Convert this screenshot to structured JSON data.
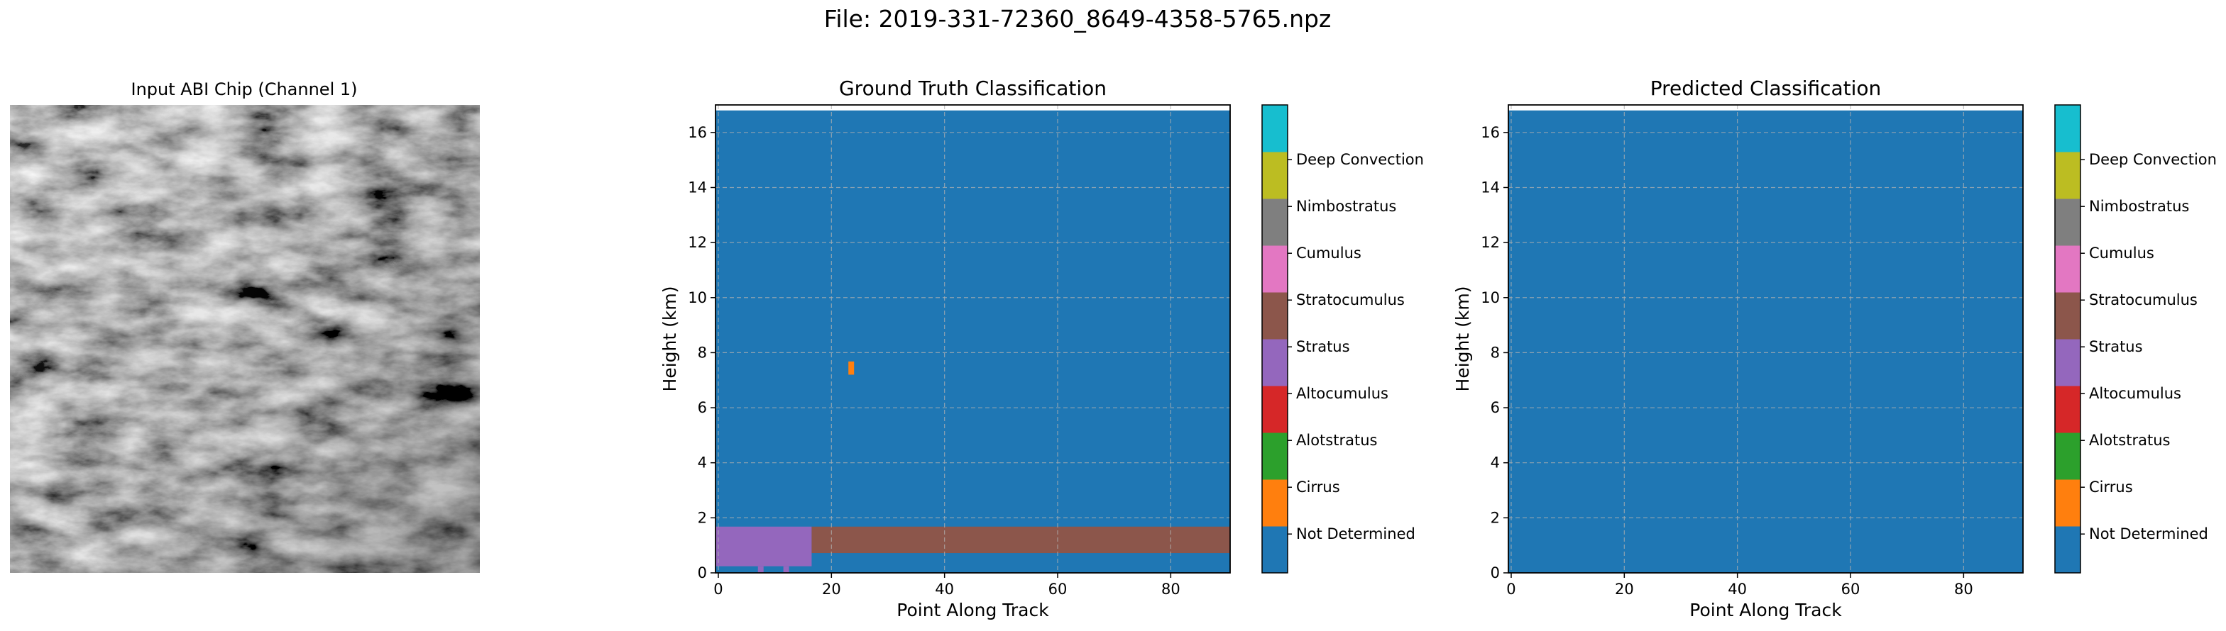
{
  "figure": {
    "suptitle": "File: 2019-331-72360_8649-4358-5765.npz"
  },
  "image_panel": {
    "title": "Input ABI Chip (Channel 1)"
  },
  "chart_data": [
    {
      "type": "heatmap",
      "title": "Ground Truth Classification",
      "xlabel": "Point Along Track",
      "ylabel": "Height (km)",
      "xlim": [
        -0.5,
        90.5
      ],
      "ylim": [
        0,
        17
      ],
      "data_top": 16.8,
      "xticks": [
        0,
        20,
        40,
        60,
        80
      ],
      "yticks": [
        0,
        2,
        4,
        6,
        8,
        10,
        12,
        14,
        16
      ],
      "grid": true,
      "background_class": "Not Determined",
      "regions": [
        {
          "class": "Stratus",
          "x": [
            0,
            17
          ],
          "y": [
            0.24,
            1.68
          ]
        },
        {
          "class": "Stratocumulus",
          "x": [
            17,
            91
          ],
          "y": [
            0.72,
            1.68
          ]
        },
        {
          "class": "Cirrus",
          "x": [
            23.5,
            24.5
          ],
          "y": [
            7.2,
            7.68
          ]
        },
        {
          "class": "Stratus",
          "x": [
            7.5,
            8.5
          ],
          "y": [
            0,
            0.24
          ]
        },
        {
          "class": "Stratus",
          "x": [
            12,
            13
          ],
          "y": [
            0,
            0.24
          ]
        }
      ]
    },
    {
      "type": "heatmap",
      "title": "Predicted Classification",
      "xlabel": "Point Along Track",
      "ylabel": "Height (km)",
      "xlim": [
        -0.5,
        90.5
      ],
      "ylim": [
        0,
        17
      ],
      "data_top": 16.8,
      "xticks": [
        0,
        20,
        40,
        60,
        80
      ],
      "yticks": [
        0,
        2,
        4,
        6,
        8,
        10,
        12,
        14,
        16
      ],
      "grid": true,
      "background_class": "Not Determined",
      "regions": []
    }
  ],
  "colorbar": {
    "classes": [
      {
        "label": "Not Determined",
        "color": "#1f77b4"
      },
      {
        "label": "Cirrus",
        "color": "#ff7f0e"
      },
      {
        "label": "Alotstratus",
        "color": "#2ca02c"
      },
      {
        "label": "Altocumulus",
        "color": "#d62728"
      },
      {
        "label": "Stratus",
        "color": "#9467bd"
      },
      {
        "label": "Stratocumulus",
        "color": "#8c564b"
      },
      {
        "label": "Cumulus",
        "color": "#e377c2"
      },
      {
        "label": "Nimbostratus",
        "color": "#7f7f7f"
      },
      {
        "label": "Deep Convection",
        "color": "#bcbd22"
      },
      {
        "label": "",
        "color": "#17becf"
      }
    ]
  }
}
